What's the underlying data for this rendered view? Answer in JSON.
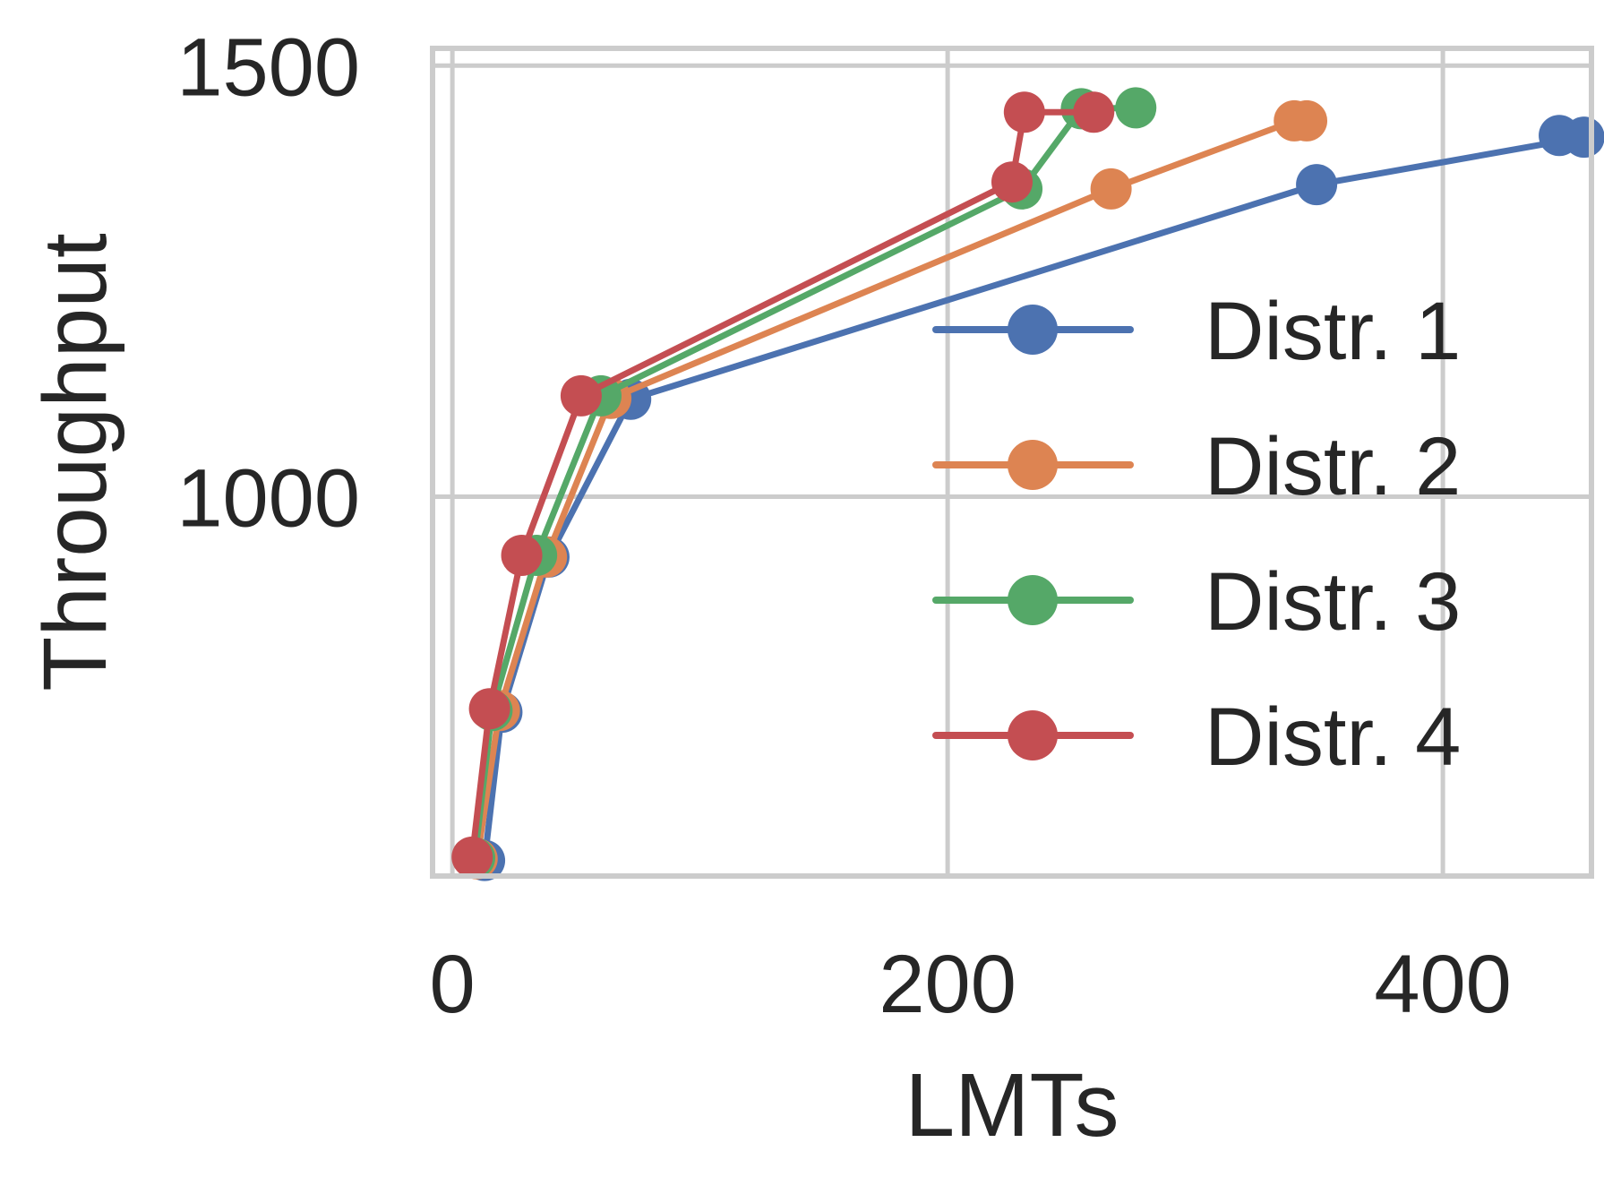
{
  "chart_data": {
    "type": "line",
    "xlabel": "LMTs",
    "ylabel": "Throughput",
    "xlim": [
      -8,
      460
    ],
    "ylim": [
      560,
      1520
    ],
    "xticks": [
      0,
      200,
      400
    ],
    "yticks": [
      1000,
      1500
    ],
    "grid": true,
    "legend_position": "center-right",
    "series": [
      {
        "name": "Distr. 1",
        "color": "#4c72b0",
        "points": [
          [
            13,
            578
          ],
          [
            20,
            750
          ],
          [
            39,
            930
          ],
          [
            72,
            1113
          ],
          [
            349,
            1362
          ],
          [
            457,
            1417
          ],
          [
            447,
            1419
          ]
        ]
      },
      {
        "name": "Distr. 2",
        "color": "#dd8452",
        "points": [
          [
            10,
            580
          ],
          [
            19,
            752
          ],
          [
            38,
            930
          ],
          [
            64,
            1114
          ],
          [
            266,
            1357
          ],
          [
            340,
            1436
          ],
          [
            345,
            1436
          ]
        ]
      },
      {
        "name": "Distr. 3",
        "color": "#55a868",
        "points": [
          [
            9,
            581
          ],
          [
            16,
            752
          ],
          [
            34,
            932
          ],
          [
            60,
            1117
          ],
          [
            230,
            1357
          ],
          [
            254,
            1450
          ],
          [
            276,
            1451
          ]
        ]
      },
      {
        "name": "Distr. 4",
        "color": "#c44e52",
        "points": [
          [
            8,
            582
          ],
          [
            15,
            754
          ],
          [
            28,
            932
          ],
          [
            52,
            1117
          ],
          [
            226,
            1365
          ],
          [
            231,
            1446
          ],
          [
            259,
            1446
          ]
        ]
      }
    ]
  }
}
